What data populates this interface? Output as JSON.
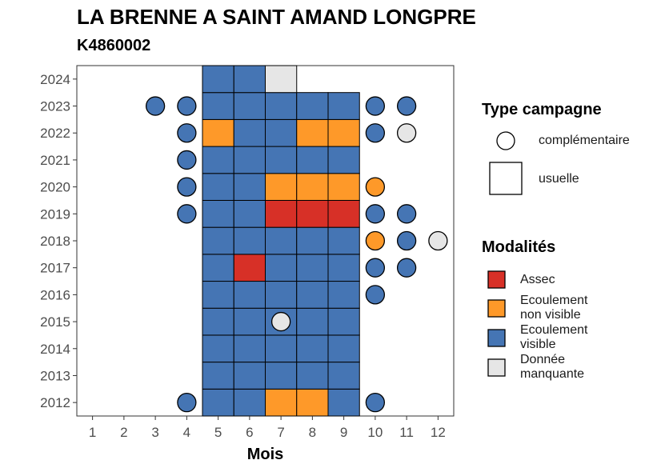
{
  "chart_data": {
    "type": "heatmap",
    "title": "LA BRENNE A SAINT AMAND LONGPRE",
    "subtitle": "K4860002",
    "xlabel": "Mois",
    "ylabel": "",
    "x_ticks": [
      1,
      2,
      3,
      4,
      5,
      6,
      7,
      8,
      9,
      10,
      11,
      12
    ],
    "y_ticks": [
      2012,
      2013,
      2014,
      2015,
      2016,
      2017,
      2018,
      2019,
      2020,
      2021,
      2022,
      2023,
      2024
    ],
    "xlim": [
      0.5,
      12.5
    ],
    "ylim": [
      2011.5,
      2024.5
    ],
    "colors": {
      "assec": "#d73027",
      "ecoulement_non_visible": "#fe9929",
      "ecoulement_visible": "#4575b4",
      "donnee_manquante": "#e6e6e6"
    },
    "legend_type": {
      "title": "Type campagne",
      "items": [
        {
          "label": "complémentaire",
          "shape": "circle"
        },
        {
          "label": "usuelle",
          "shape": "square"
        }
      ]
    },
    "legend_modalites": {
      "title": "Modalités",
      "items": [
        {
          "key": "assec",
          "label_lines": [
            "Assec"
          ]
        },
        {
          "key": "ecoulement_non_visible",
          "label_lines": [
            "Ecoulement",
            "non visible"
          ]
        },
        {
          "key": "ecoulement_visible",
          "label_lines": [
            "Ecoulement",
            "visible"
          ]
        },
        {
          "key": "donnee_manquante",
          "label_lines": [
            "Donnée",
            "manquante"
          ]
        }
      ]
    },
    "usuelle": [
      {
        "year": 2012,
        "months": [
          "V",
          "V",
          "N",
          "N",
          "V"
        ]
      },
      {
        "year": 2013,
        "months": [
          "V",
          "V",
          "V",
          "V",
          "V"
        ]
      },
      {
        "year": 2014,
        "months": [
          "V",
          "V",
          "V",
          "V",
          "V"
        ]
      },
      {
        "year": 2015,
        "months": [
          "V",
          "V",
          "V",
          "V",
          "V"
        ]
      },
      {
        "year": 2016,
        "months": [
          "V",
          "V",
          "V",
          "V",
          "V"
        ]
      },
      {
        "year": 2017,
        "months": [
          "V",
          "A",
          "V",
          "V",
          "V"
        ]
      },
      {
        "year": 2018,
        "months": [
          "V",
          "V",
          "V",
          "V",
          "V"
        ]
      },
      {
        "year": 2019,
        "months": [
          "V",
          "V",
          "A",
          "A",
          "A"
        ]
      },
      {
        "year": 2020,
        "months": [
          "V",
          "V",
          "N",
          "N",
          "N"
        ]
      },
      {
        "year": 2021,
        "months": [
          "V",
          "V",
          "V",
          "V",
          "V"
        ]
      },
      {
        "year": 2022,
        "months": [
          "N",
          "V",
          "V",
          "N",
          "N"
        ]
      },
      {
        "year": 2023,
        "months": [
          "V",
          "V",
          "V",
          "V",
          "V"
        ]
      },
      {
        "year": 2024,
        "months": [
          "V",
          "V",
          "M",
          null,
          null
        ]
      }
    ],
    "usuelle_start_month": 5,
    "complementaire": [
      {
        "year": 2012,
        "month": 4,
        "mod": "V"
      },
      {
        "year": 2012,
        "month": 10,
        "mod": "V"
      },
      {
        "year": 2015,
        "month": 7,
        "mod": "M"
      },
      {
        "year": 2016,
        "month": 10,
        "mod": "V"
      },
      {
        "year": 2017,
        "month": 10,
        "mod": "V"
      },
      {
        "year": 2017,
        "month": 11,
        "mod": "V"
      },
      {
        "year": 2018,
        "month": 10,
        "mod": "N"
      },
      {
        "year": 2018,
        "month": 11,
        "mod": "V"
      },
      {
        "year": 2018,
        "month": 12,
        "mod": "M"
      },
      {
        "year": 2019,
        "month": 4,
        "mod": "V"
      },
      {
        "year": 2019,
        "month": 10,
        "mod": "V"
      },
      {
        "year": 2019,
        "month": 11,
        "mod": "V"
      },
      {
        "year": 2020,
        "month": 4,
        "mod": "V"
      },
      {
        "year": 2020,
        "month": 10,
        "mod": "N"
      },
      {
        "year": 2021,
        "month": 4,
        "mod": "V"
      },
      {
        "year": 2022,
        "month": 4,
        "mod": "V"
      },
      {
        "year": 2022,
        "month": 10,
        "mod": "V"
      },
      {
        "year": 2022,
        "month": 11,
        "mod": "M"
      },
      {
        "year": 2023,
        "month": 3,
        "mod": "V"
      },
      {
        "year": 2023,
        "month": 4,
        "mod": "V"
      },
      {
        "year": 2023,
        "month": 10,
        "mod": "V"
      },
      {
        "year": 2023,
        "month": 11,
        "mod": "V"
      }
    ]
  }
}
